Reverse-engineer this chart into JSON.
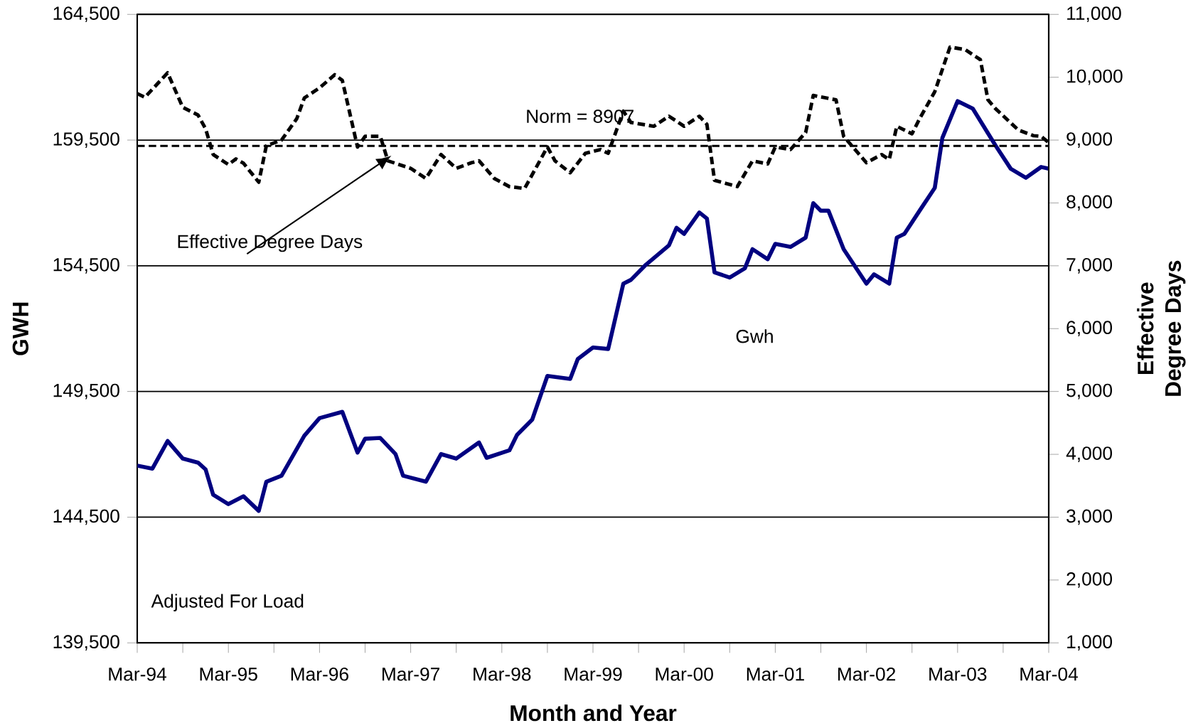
{
  "chart_data": {
    "type": "line",
    "xlabel": "Month and Year",
    "ylabel": "GWH",
    "y2label": "Effective Degree Days",
    "xlim": [
      "1994-03",
      "2004-03"
    ],
    "xticks": [
      {
        "value": "1994-03",
        "label": "Mar-94"
      },
      {
        "value": "1994-09",
        "label": null
      },
      {
        "value": "1995-03",
        "label": "Mar-95"
      },
      {
        "value": "1995-09",
        "label": null
      },
      {
        "value": "1996-03",
        "label": "Mar-96"
      },
      {
        "value": "1996-09",
        "label": null
      },
      {
        "value": "1997-03",
        "label": "Mar-97"
      },
      {
        "value": "1997-09",
        "label": null
      },
      {
        "value": "1998-03",
        "label": "Mar-98"
      },
      {
        "value": "1998-09",
        "label": null
      },
      {
        "value": "1999-03",
        "label": "Mar-99"
      },
      {
        "value": "1999-09",
        "label": null
      },
      {
        "value": "2000-03",
        "label": "Mar-00"
      },
      {
        "value": "2000-09",
        "label": null
      },
      {
        "value": "2001-03",
        "label": "Mar-01"
      },
      {
        "value": "2001-09",
        "label": null
      },
      {
        "value": "2002-03",
        "label": "Mar-02"
      },
      {
        "value": "2002-09",
        "label": null
      },
      {
        "value": "2003-03",
        "label": "Mar-03"
      },
      {
        "value": "2003-09",
        "label": null
      },
      {
        "value": "2004-03",
        "label": "Mar-04"
      }
    ],
    "ylim": [
      139500,
      164500
    ],
    "yticks": [
      {
        "value": 139500,
        "label": "139,500"
      },
      {
        "value": 144500,
        "label": "144,500"
      },
      {
        "value": 149500,
        "label": "149,500"
      },
      {
        "value": 154500,
        "label": "154,500"
      },
      {
        "value": 159500,
        "label": "159,500"
      },
      {
        "value": 164500,
        "label": "164,500"
      }
    ],
    "y2lim": [
      1000,
      11000
    ],
    "y2ticks": [
      {
        "value": 1000,
        "label": "1,000"
      },
      {
        "value": 2000,
        "label": "2,000"
      },
      {
        "value": 3000,
        "label": "3,000"
      },
      {
        "value": 4000,
        "label": "4,000"
      },
      {
        "value": 5000,
        "label": "5,000"
      },
      {
        "value": 6000,
        "label": "6,000"
      },
      {
        "value": 7000,
        "label": "7,000"
      },
      {
        "value": 8000,
        "label": "8,000"
      },
      {
        "value": 9000,
        "label": "9,000"
      },
      {
        "value": 10000,
        "label": "10,000"
      },
      {
        "value": 11000,
        "label": "11,000"
      }
    ],
    "grid": "y",
    "marker": "none",
    "series": [
      {
        "color": "#000080",
        "line_style": "solid",
        "x": [
          "1994-03",
          "1994-05",
          "1994-07",
          "1994-09",
          "1994-11",
          "1994-12",
          "1995-01",
          "1995-03",
          "1995-05",
          "1995-07",
          "1995-08",
          "1995-10",
          "1996-01",
          "1996-03",
          "1996-06",
          "1996-08",
          "1996-09",
          "1996-11",
          "1997-01",
          "1997-02",
          "1997-05",
          "1997-07",
          "1997-09",
          "1997-12",
          "1998-01",
          "1998-04",
          "1998-05",
          "1998-07",
          "1998-09",
          "1998-12",
          "1999-01",
          "1999-03",
          "1999-05",
          "1999-07",
          "1999-08",
          "1999-10",
          "2000-01",
          "2000-02",
          "2000-03",
          "2000-05",
          "2000-06",
          "2000-07",
          "2000-09",
          "2000-11",
          "2000-12",
          "2001-02",
          "2001-03",
          "2001-05",
          "2001-07",
          "2001-08",
          "2001-09",
          "2001-10",
          "2001-12",
          "2002-03",
          "2002-04",
          "2002-06",
          "2002-07",
          "2002-08",
          "2002-10",
          "2002-12",
          "2003-01",
          "2003-03",
          "2003-05",
          "2003-08",
          "2003-10",
          "2003-12",
          "2004-02",
          "2004-03"
        ],
        "values": [
          146550,
          146430,
          147530,
          146830,
          146670,
          146400,
          145390,
          145020,
          145330,
          144750,
          145910,
          146150,
          147740,
          148440,
          148690,
          147070,
          147620,
          147650,
          147010,
          146150,
          145910,
          147010,
          146830,
          147470,
          146860,
          147160,
          147770,
          148380,
          150120,
          150000,
          150790,
          151250,
          151190,
          153790,
          153940,
          154550,
          155310,
          156010,
          155770,
          156620,
          156380,
          154240,
          154030,
          154400,
          155160,
          154760,
          155370,
          155250,
          155620,
          156990,
          156690,
          156690,
          155160,
          153790,
          154160,
          153790,
          155620,
          155770,
          156690,
          157600,
          159590,
          161050,
          160750,
          159280,
          158360,
          158000,
          158430,
          158360
        ]
      },
      {
        "color": "#000000",
        "line_style": "dashed",
        "axis": "y2",
        "x": [
          "1994-03",
          "1994-04",
          "1994-07",
          "1994-09",
          "1994-11",
          "1994-12",
          "1995-01",
          "1995-03",
          "1995-04",
          "1995-05",
          "1995-07",
          "1995-08",
          "1995-10",
          "1995-12",
          "1996-01",
          "1996-03",
          "1996-05",
          "1996-06",
          "1996-08",
          "1996-09",
          "1996-11",
          "1996-12",
          "1997-03",
          "1997-05",
          "1997-07",
          "1997-09",
          "1997-11",
          "1997-12",
          "1998-02",
          "1998-04",
          "1998-06",
          "1998-09",
          "1998-10",
          "1998-12",
          "1999-02",
          "1999-04",
          "1999-05",
          "1999-07",
          "1999-08",
          "1999-11",
          "2000-01",
          "2000-03",
          "2000-05",
          "2000-06",
          "2000-07",
          "2000-10",
          "2000-12",
          "2001-02",
          "2001-03",
          "2001-05",
          "2001-07",
          "2001-08",
          "2001-11",
          "2001-12",
          "2002-03",
          "2002-05",
          "2002-06",
          "2002-07",
          "2002-09",
          "2002-10",
          "2002-12",
          "2003-02",
          "2003-04",
          "2003-06",
          "2003-07",
          "2003-08",
          "2003-11",
          "2004-01",
          "2004-02",
          "2004-03"
        ],
        "values": [
          9740,
          9680,
          10070,
          9520,
          9400,
          9180,
          8770,
          8610,
          8700,
          8630,
          8330,
          8910,
          9000,
          9340,
          9670,
          9830,
          10040,
          9950,
          8890,
          9060,
          9060,
          8670,
          8550,
          8390,
          8770,
          8550,
          8640,
          8670,
          8390,
          8260,
          8230,
          8890,
          8670,
          8480,
          8790,
          8850,
          8790,
          9460,
          9280,
          9220,
          9380,
          9220,
          9380,
          9250,
          8360,
          8260,
          8670,
          8620,
          8890,
          8850,
          9120,
          9710,
          9640,
          9060,
          8640,
          8770,
          8690,
          9220,
          9100,
          9340,
          9770,
          10480,
          10440,
          10280,
          9640,
          9500,
          9160,
          9070,
          9060,
          8960
        ]
      }
    ],
    "ref_lines": [
      {
        "axis": "y2",
        "value": 8907,
        "label": "Norm = 8907",
        "color": "#000000",
        "line_style": "dashed"
      }
    ],
    "annotations": [
      "Effective Degree Days",
      "Gwh",
      "Adjusted For Load"
    ]
  }
}
